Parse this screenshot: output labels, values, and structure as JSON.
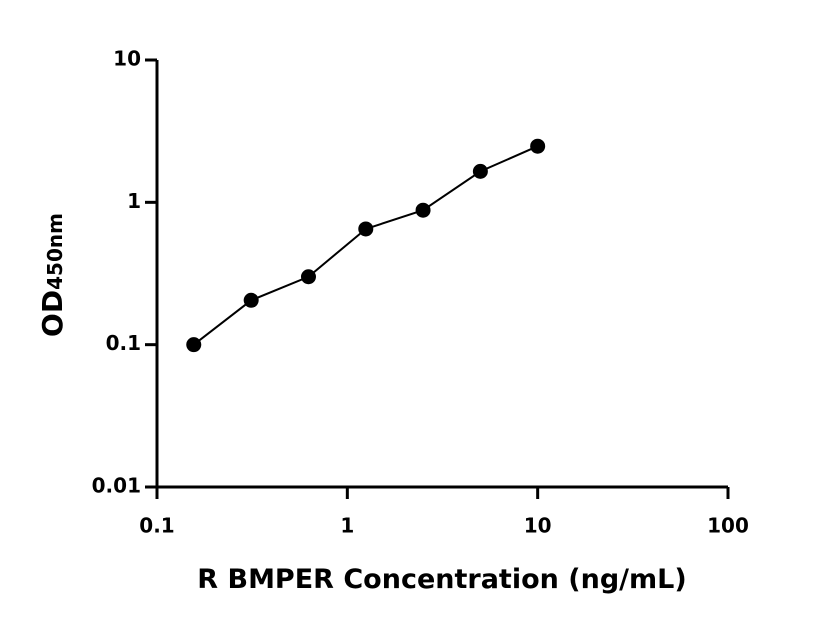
{
  "chart_data": {
    "type": "scatter",
    "xlabel": "R BMPER Concentration (ng/mL)",
    "ylabel": {
      "main": "OD",
      "sub": "450nm"
    },
    "x": [
      0.156,
      0.3125,
      0.625,
      1.25,
      2.5,
      5,
      10
    ],
    "values": [
      0.1,
      0.205,
      0.3,
      0.65,
      0.88,
      1.65,
      2.48
    ],
    "color": "#000000",
    "line": true,
    "xscale": "log",
    "yscale": "log",
    "xlim": [
      0.1,
      100
    ],
    "xticks": [
      0.1,
      1,
      10,
      100
    ],
    "ylim": [
      0.01,
      10
    ],
    "yticks": [
      0.01,
      0.1,
      1,
      10
    ],
    "grid": false
  }
}
